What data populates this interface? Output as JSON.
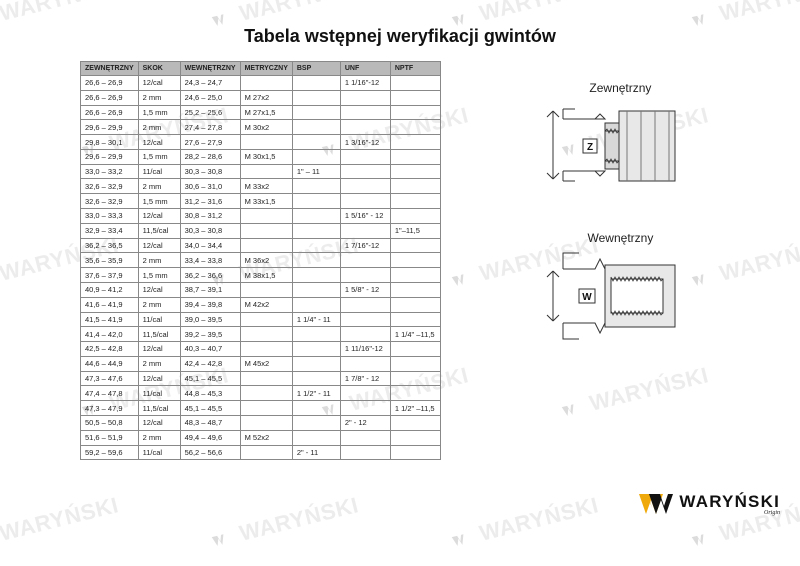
{
  "title": "Tabela wstępnej weryfikacji gwintów",
  "table": {
    "columns": [
      "ZEWNĘTRZNY",
      "SKOK",
      "WEWNĘTRZNY",
      "METRYCZNY",
      "BSP",
      "UNF",
      "NPTF"
    ],
    "rows": [
      [
        "26,6 – 26,9",
        "12/cal",
        "24,3 – 24,7",
        "",
        "",
        "1 1/16\"-12",
        ""
      ],
      [
        "26,6 – 26,9",
        "2 mm",
        "24,6 – 25,0",
        "M 27x2",
        "",
        "",
        ""
      ],
      [
        "26,6 – 26,9",
        "1,5 mm",
        "25,2 – 25,6",
        "M 27x1,5",
        "",
        "",
        ""
      ],
      [
        "29,6 – 29,9",
        "2 mm",
        "27,4 – 27,8",
        "M 30x2",
        "",
        "",
        ""
      ],
      [
        "29,8 – 30,1",
        "12/cal",
        "27,6 – 27,9",
        "",
        "",
        "1 3/16\"-12",
        ""
      ],
      [
        "29,6 – 29,9",
        "1,5 mm",
        "28,2 – 28,6",
        "M 30x1,5",
        "",
        "",
        ""
      ],
      [
        "33,0 – 33,2",
        "11/cal",
        "30,3 – 30,8",
        "",
        "1\" – 11",
        "",
        ""
      ],
      [
        "32,6 – 32,9",
        "2 mm",
        "30,6 – 31,0",
        "M 33x2",
        "",
        "",
        ""
      ],
      [
        "32,6 – 32,9",
        "1,5 mm",
        "31,2 – 31,6",
        "M 33x1,5",
        "",
        "",
        ""
      ],
      [
        "33,0 – 33,3",
        "12/cal",
        "30,8 – 31,2",
        "",
        "",
        "1 5/16\" - 12",
        ""
      ],
      [
        "32,9 – 33,4",
        "11,5/cal",
        "30,3 – 30,8",
        "",
        "",
        "",
        "1\"–11,5"
      ],
      [
        "36,2 – 36,5",
        "12/cal",
        "34,0 – 34,4",
        "",
        "",
        "1 7/16\"-12",
        ""
      ],
      [
        "35,6 – 35,9",
        "2 mm",
        "33,4 – 33,8",
        "M 36x2",
        "",
        "",
        ""
      ],
      [
        "37,6 – 37,9",
        "1,5 mm",
        "36,2 – 36,6",
        "M 38x1,5",
        "",
        "",
        ""
      ],
      [
        "40,9 – 41,2",
        "12/cal",
        "38,7 – 39,1",
        "",
        "",
        "1 5/8\" - 12",
        ""
      ],
      [
        "41,6 – 41,9",
        "2 mm",
        "39,4 – 39,8",
        "M 42x2",
        "",
        "",
        ""
      ],
      [
        "41,5 – 41,9",
        "11/cal",
        "39,0 – 39,5",
        "",
        "1 1/4\" - 11",
        "",
        ""
      ],
      [
        "41,4 – 42,0",
        "11,5/cal",
        "39,2 – 39,5",
        "",
        "",
        "",
        "1 1/4\" –11,5"
      ],
      [
        "42,5 – 42,8",
        "12/cal",
        "40,3 – 40,7",
        "",
        "",
        "1 11/16\"-12",
        ""
      ],
      [
        "44,6 – 44,9",
        "2 mm",
        "42,4 – 42,8",
        "M 45x2",
        "",
        "",
        ""
      ],
      [
        "47,3 – 47,6",
        "12/cal",
        "45,1 – 45,5",
        "",
        "",
        "1 7/8\" - 12",
        ""
      ],
      [
        "47,4 – 47,8",
        "11/cal",
        "44,8 – 45,3",
        "",
        "1 1/2\" - 11",
        "",
        ""
      ],
      [
        "47,3 – 47,9",
        "11,5/cal",
        "45,1 – 45,5",
        "",
        "",
        "",
        "1 1/2\" –11,5"
      ],
      [
        "50,5 – 50,8",
        "12/cal",
        "48,3 – 48,7",
        "",
        "",
        "2\" - 12",
        ""
      ],
      [
        "51,6 – 51,9",
        "2 mm",
        "49,4 – 49,6",
        "M 52x2",
        "",
        "",
        ""
      ],
      [
        "59,2 – 59,6",
        "11/cal",
        "56,2 – 56,6",
        "",
        "2\" - 11",
        "",
        ""
      ]
    ]
  },
  "diagrams": {
    "external": {
      "label": "Zewnętrzny",
      "letter": "Z"
    },
    "internal": {
      "label": "Wewnętrzny",
      "letter": "W"
    }
  },
  "brand": {
    "name": "WARYŃSKI",
    "sub": "Origin"
  },
  "watermark_text": "WARYŃSKI",
  "colors": {
    "header_bg": "#b9b9b9",
    "border": "#888888",
    "brand_yellow": "#f0a90a",
    "watermark": "rgba(185,185,185,0.28)"
  }
}
